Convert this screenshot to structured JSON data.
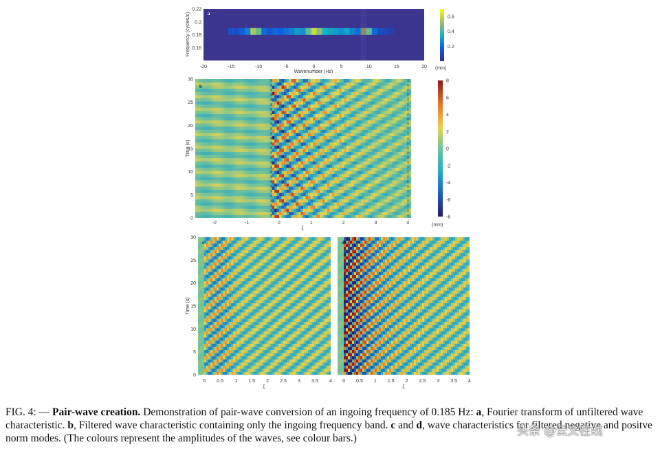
{
  "chart_data": [
    {
      "type": "heatmap",
      "panel_label": "a",
      "xlabel": "Wavenumber (Hz)",
      "ylabel": "Frequency (cycles/s)",
      "xlim": [
        -20,
        20
      ],
      "ylim": [
        0.14,
        0.22
      ],
      "x_ticks": [
        "-20",
        "-15",
        "-10",
        "-5",
        "0",
        "5",
        "10",
        "15",
        "20"
      ],
      "y_ticks": [
        "0.22",
        "0.2",
        "0.18",
        "0.16"
      ],
      "colorbar": {
        "label": "(mm)",
        "ticks": [
          "0.6",
          "0.4",
          "0.2"
        ],
        "range": [
          0,
          0.7
        ]
      },
      "band_frequency": 0.185,
      "band_values": [
        {
          "k": -15,
          "v": 0.15
        },
        {
          "k": -14,
          "v": 0.12
        },
        {
          "k": -13,
          "v": 0.18
        },
        {
          "k": -12,
          "v": 0.25
        },
        {
          "k": -11,
          "v": 0.55
        },
        {
          "k": -10,
          "v": 0.45
        },
        {
          "k": -9,
          "v": 0.2
        },
        {
          "k": -8,
          "v": 0.15
        },
        {
          "k": -7,
          "v": 0.2
        },
        {
          "k": -6,
          "v": 0.18
        },
        {
          "k": -5,
          "v": 0.22
        },
        {
          "k": -4,
          "v": 0.25
        },
        {
          "k": -3,
          "v": 0.3
        },
        {
          "k": -2,
          "v": 0.28
        },
        {
          "k": -1,
          "v": 0.45
        },
        {
          "k": 0,
          "v": 0.6
        },
        {
          "k": 1,
          "v": 0.5
        },
        {
          "k": 2,
          "v": 0.35
        },
        {
          "k": 3,
          "v": 0.32
        },
        {
          "k": 4,
          "v": 0.3
        },
        {
          "k": 5,
          "v": 0.28
        },
        {
          "k": 6,
          "v": 0.32
        },
        {
          "k": 7,
          "v": 0.25
        },
        {
          "k": 8,
          "v": 0.2
        },
        {
          "k": 9,
          "v": 0.68
        },
        {
          "k": 10,
          "v": 0.45
        },
        {
          "k": 11,
          "v": 0.2
        },
        {
          "k": 12,
          "v": 0.12
        },
        {
          "k": 13,
          "v": 0.1
        },
        {
          "k": 14,
          "v": 0.08
        }
      ]
    },
    {
      "type": "heatmap",
      "panel_label": "b",
      "xlabel": "ξ",
      "ylabel": "Time (s)",
      "xlim": [
        -2.6,
        4.1
      ],
      "ylim": [
        0,
        30
      ],
      "x_ticks": [
        "-2",
        "-1",
        "0",
        "1",
        "2",
        "3",
        "4"
      ],
      "y_ticks": [
        "30",
        "25",
        "20",
        "15",
        "10",
        "5",
        "0"
      ],
      "colorbar": {
        "label": "(mm)",
        "ticks": [
          "8",
          "6",
          "4",
          "2",
          "0",
          "-2",
          "-4",
          "-6",
          "-8"
        ],
        "range": [
          -8,
          8
        ]
      },
      "dashed_lines_x": [
        -0.25,
        4.0
      ]
    },
    {
      "type": "heatmap",
      "panel_label": "c",
      "xlabel": "ξ",
      "ylabel": "Time (s)",
      "xlim": [
        -0.2,
        4.0
      ],
      "ylim": [
        0,
        30
      ],
      "x_ticks": [
        "0",
        "0.5",
        "1",
        "1.5",
        "2",
        "2.5",
        "3",
        "3.5",
        "4"
      ],
      "y_ticks": [
        "30",
        "25",
        "20",
        "15",
        "10",
        "5",
        "0"
      ]
    },
    {
      "type": "heatmap",
      "panel_label": "d",
      "xlabel": "ξ",
      "ylabel": "",
      "xlim": [
        -0.2,
        4.0
      ],
      "ylim": [
        0,
        30
      ],
      "x_ticks": [
        "0",
        "0.5",
        "1",
        "1.5",
        "2",
        "2.5",
        "3",
        "3.5",
        "4"
      ],
      "y_ticks": []
    }
  ],
  "caption": {
    "fig_label": "FIG. 4:",
    "dash": "—",
    "title": "Pair-wave creation.",
    "text1": " Demonstration of pair-wave conversion of an ingoing frequency of 0.185 Hz: ",
    "a": "a",
    "text2": ", Fourier transform of unfiltered wave characteristic. ",
    "b": "b",
    "text3": ", Filtered wave characteristic containing only the ingoing frequency band. ",
    "c": "c",
    "text4": " and ",
    "d": "d",
    "text5": ", wave characteristics for filtered negative and positve norm modes. (The colours represent the amplitudes of the waves, see colour bars.)"
  },
  "watermark": "头条 @云文在线"
}
